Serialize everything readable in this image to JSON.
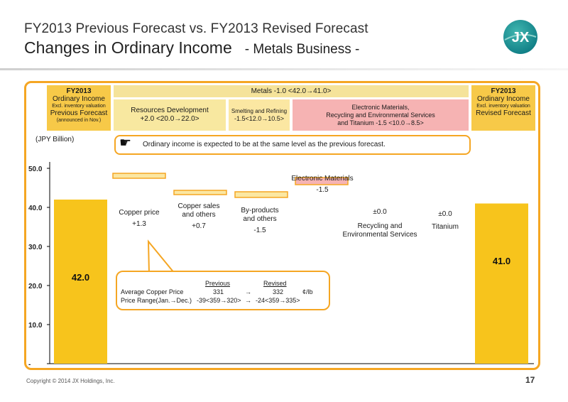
{
  "slide": {
    "title_line1": "FY2013 Previous Forecast vs. FY2013 Revised Forecast",
    "title_line2": "Changes in Ordinary Income",
    "title_suffix": "- Metals Business -",
    "logo_text": "JX",
    "footer": "Copyright © 2014 JX Holdings, Inc.",
    "page_number": "17"
  },
  "headers": {
    "previous": {
      "line1": "FY2013",
      "line2": "Ordinary Income",
      "line3": "Excl. inventory valuation",
      "line4": "Previous Forecast",
      "line5": "(announced in Nov.)"
    },
    "revised": {
      "line1": "FY2013",
      "line2": "Ordinary Income",
      "line3": "Excl. inventory valuation",
      "line4": "Revised Forecast"
    },
    "metals": "Metals   -1.0 <42.0→41.0>",
    "resources": {
      "line1": "Resources Development",
      "line2": "+2.0 <20.0→22.0>"
    },
    "smelting": {
      "line1": "Smelting and Refining",
      "line2": "-1.5<12.0→10.5>"
    },
    "electronic": {
      "line1": "Electronic Materials,",
      "line2": "Recycling and Environmental Services",
      "line3": "and Titanium  -1.5 <10.0→8.5>"
    }
  },
  "unit_label": "(JPY Billion)",
  "note": "Ordinary income is expected to be at the same level as the previous forecast.",
  "callout": {
    "col_previous": "Previous",
    "col_revised": "Revised",
    "row1_label": "Average Copper Price",
    "row1_prev": "331",
    "row1_arrow": "→",
    "row1_rev": "332",
    "row1_unit": "¢/lb",
    "row2_label": "Price Range(Jan.→Dec.)",
    "row2_prev": "-39<359→320>",
    "row2_arrow": "→",
    "row2_rev": "-24<359→335>"
  },
  "step_labels": {
    "copper_price": {
      "name": "Copper price",
      "value": "+1.3"
    },
    "copper_sales": {
      "name1": "Copper sales",
      "name2": "and others",
      "value": "+0.7"
    },
    "byproducts": {
      "name1": "By-products",
      "name2": "and others",
      "value": "-1.5"
    },
    "electronic": {
      "name": "Electronic Materials",
      "value": "-1.5"
    },
    "recycling": {
      "value": "±0.0",
      "name1": "Recycling and",
      "name2": "Environmental Services"
    },
    "titanium": {
      "value": "±0.0",
      "name": "Titanium"
    }
  },
  "colors": {
    "accent": "#f5a623",
    "bar_fill": "#f7c41c",
    "step_fill": "#fbe7a2",
    "step_fill_red": "#f6b3b3"
  },
  "chart_data": {
    "type": "bar",
    "subtype": "waterfall",
    "ylabel": "(JPY Billion)",
    "ylim": [
      0,
      50
    ],
    "yticks": [
      "-",
      "10.0",
      "20.0",
      "30.0",
      "40.0",
      "50.0"
    ],
    "ytick_values": [
      0,
      10,
      20,
      30,
      40,
      50
    ],
    "categories": [
      "Previous Forecast",
      "Copper price",
      "Copper sales and others",
      "By-products and others",
      "Electronic Materials",
      "Recycling and Environmental Services",
      "Titanium",
      "Revised Forecast"
    ],
    "values": [
      42.0,
      1.3,
      0.7,
      -1.5,
      -1.5,
      0.0,
      0.0,
      41.0
    ],
    "totals": [
      "42.0",
      "41.0"
    ]
  }
}
